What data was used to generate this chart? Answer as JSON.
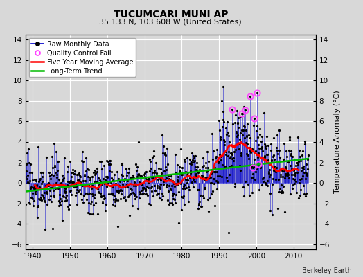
{
  "title": "TUCUMCARI MUNI AP",
  "subtitle": "35.133 N, 103.608 W (United States)",
  "ylabel": "Temperature Anomaly (°C)",
  "attribution": "Berkeley Earth",
  "xlim": [
    1938,
    2016
  ],
  "ylim": [
    -6.5,
    14.5
  ],
  "yticks": [
    -6,
    -4,
    -2,
    0,
    2,
    4,
    6,
    8,
    10,
    12,
    14
  ],
  "xticks": [
    1940,
    1950,
    1960,
    1970,
    1980,
    1990,
    2000,
    2010
  ],
  "bg_color": "#d8d8d8",
  "grid_color": "#ffffff",
  "raw_line_color": "#0000cc",
  "raw_marker_color": "#000000",
  "qc_fail_color": "#ff44ff",
  "moving_avg_color": "#ff0000",
  "trend_color": "#00bb00",
  "start_year": 1938,
  "end_year": 2013
}
